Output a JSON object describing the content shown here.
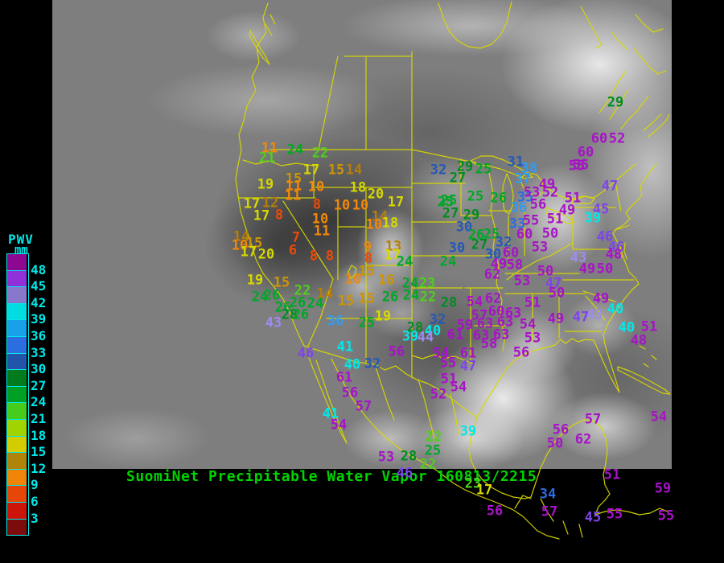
{
  "header": {
    "title": "SuomiNet Precipitable Water Vapor",
    "timestamp": "160813/2215",
    "full_title": "SuomiNet Precipitable Water Vapor 160813/2215",
    "title_color": "#00d400"
  },
  "legend": {
    "title": "PWV",
    "unit": "mm",
    "text_color": "#00e8e8",
    "labels": [
      48,
      45,
      42,
      39,
      36,
      33,
      30,
      27,
      24,
      21,
      18,
      15,
      12,
      9,
      6,
      3
    ],
    "swatch_colors": [
      "#8c0890",
      "#9030d8",
      "#8878cc",
      "#00dce0",
      "#18a0e8",
      "#2a6ee0",
      "#2254aa",
      "#007c1e",
      "#00a024",
      "#46cc1a",
      "#a0d400",
      "#d2cc00",
      "#b08408",
      "#f08408",
      "#e64608",
      "#cc1408",
      "#7c0c0c"
    ]
  },
  "palette": {
    "map_outline": "#d8d800",
    "background": "#000000",
    "satellite_base": "#7e7e7e"
  },
  "value_color_scale": [
    {
      "min": 48,
      "color": "#a812c8"
    },
    {
      "min": 45,
      "color": "#7d45e8"
    },
    {
      "min": 42,
      "color": "#9d8cf0"
    },
    {
      "min": 39,
      "color": "#00e8e8"
    },
    {
      "min": 36,
      "color": "#2e9bf5"
    },
    {
      "min": 33,
      "color": "#2f6be0"
    },
    {
      "min": 30,
      "color": "#2458b8"
    },
    {
      "min": 27,
      "color": "#008c20"
    },
    {
      "min": 24,
      "color": "#00a826"
    },
    {
      "min": 21,
      "color": "#4ed01c"
    },
    {
      "min": 18,
      "color": "#d6d800"
    },
    {
      "min": 17,
      "color": "#d6d800"
    },
    {
      "min": 15,
      "color": "#cc9408"
    },
    {
      "min": 12,
      "color": "#b87d08"
    },
    {
      "min": 9,
      "color": "#f28808"
    },
    {
      "min": 6,
      "color": "#ea4a08"
    },
    {
      "min": 3,
      "color": "#d81408"
    }
  ],
  "stations": [
    [
      11,
      335,
      185
    ],
    [
      21,
      332,
      197
    ],
    [
      24,
      367,
      187
    ],
    [
      22,
      398,
      191
    ],
    [
      17,
      387,
      212
    ],
    [
      15,
      418,
      212
    ],
    [
      14,
      440,
      212
    ],
    [
      15,
      365,
      223
    ],
    [
      19,
      330,
      230
    ],
    [
      11,
      365,
      232
    ],
    [
      10,
      393,
      233
    ],
    [
      11,
      364,
      244
    ],
    [
      18,
      445,
      234
    ],
    [
      20,
      467,
      242
    ],
    [
      17,
      492,
      252
    ],
    [
      17,
      313,
      254
    ],
    [
      12,
      336,
      253
    ],
    [
      17,
      325,
      269
    ],
    [
      8,
      347,
      268
    ],
    [
      8,
      394,
      255
    ],
    [
      10,
      425,
      256
    ],
    [
      10,
      448,
      256
    ],
    [
      10,
      398,
      273
    ],
    [
      14,
      472,
      270
    ],
    [
      10,
      465,
      280
    ],
    [
      18,
      485,
      278
    ],
    [
      11,
      400,
      288
    ],
    [
      7,
      368,
      296
    ],
    [
      6,
      364,
      312
    ],
    [
      14,
      300,
      295
    ],
    [
      10,
      298,
      306
    ],
    [
      15,
      316,
      303
    ],
    [
      17,
      309,
      314
    ],
    [
      20,
      331,
      317
    ],
    [
      8,
      390,
      319
    ],
    [
      8,
      410,
      319
    ],
    [
      9,
      457,
      308
    ],
    [
      8,
      458,
      322
    ],
    [
      13,
      489,
      307
    ],
    [
      17,
      488,
      318
    ],
    [
      15,
      456,
      338
    ],
    [
      10,
      439,
      348
    ],
    [
      16,
      480,
      349
    ],
    [
      24,
      503,
      326
    ],
    [
      30,
      568,
      309
    ],
    [
      24,
      557,
      326
    ],
    [
      25,
      591,
      245
    ],
    [
      26,
      620,
      247
    ],
    [
      25,
      554,
      252
    ],
    [
      27,
      560,
      266
    ],
    [
      29,
      586,
      268
    ],
    [
      30,
      577,
      283
    ],
    [
      26,
      592,
      293
    ],
    [
      25,
      611,
      292
    ],
    [
      27,
      596,
      305
    ],
    [
      32,
      626,
      302
    ],
    [
      30,
      613,
      317
    ],
    [
      60,
      635,
      315
    ],
    [
      49,
      620,
      329
    ],
    [
      58,
      640,
      330
    ],
    [
      62,
      612,
      342
    ],
    [
      53,
      649,
      350
    ],
    [
      36,
      645,
      259
    ],
    [
      35,
      653,
      246
    ],
    [
      33,
      643,
      279
    ],
    [
      32,
      545,
      212
    ],
    [
      29,
      578,
      208
    ],
    [
      25,
      601,
      211
    ],
    [
      27,
      569,
      222
    ],
    [
      31,
      641,
      202
    ],
    [
      38,
      658,
      210
    ],
    [
      37,
      650,
      223
    ],
    [
      25,
      558,
      250
    ],
    [
      56,
      669,
      255
    ],
    [
      53,
      661,
      240
    ],
    [
      52,
      684,
      240
    ],
    [
      49,
      680,
      230
    ],
    [
      51,
      712,
      247
    ],
    [
      55,
      717,
      207
    ],
    [
      47,
      758,
      232
    ],
    [
      49,
      705,
      262
    ],
    [
      45,
      747,
      261
    ],
    [
      39,
      737,
      272
    ],
    [
      55,
      660,
      275
    ],
    [
      51,
      690,
      273
    ],
    [
      60,
      652,
      292
    ],
    [
      50,
      684,
      291
    ],
    [
      53,
      671,
      308
    ],
    [
      46,
      752,
      295
    ],
    [
      46,
      766,
      308
    ],
    [
      48,
      763,
      317
    ],
    [
      43,
      719,
      321
    ],
    [
      49,
      730,
      335
    ],
    [
      50,
      752,
      335
    ],
    [
      50,
      678,
      338
    ],
    [
      47,
      688,
      353
    ],
    [
      50,
      692,
      365
    ],
    [
      29,
      765,
      128
    ],
    [
      60,
      745,
      173
    ],
    [
      52,
      767,
      173
    ],
    [
      60,
      728,
      190
    ],
    [
      55,
      722,
      206
    ],
    [
      51,
      662,
      377
    ],
    [
      49,
      691,
      397
    ],
    [
      47,
      722,
      395
    ],
    [
      43,
      739,
      392
    ],
    [
      49,
      747,
      372
    ],
    [
      40,
      765,
      385
    ],
    [
      40,
      779,
      408
    ],
    [
      51,
      807,
      407
    ],
    [
      48,
      794,
      424
    ],
    [
      54,
      656,
      404
    ],
    [
      53,
      662,
      421
    ],
    [
      54,
      590,
      376
    ],
    [
      57,
      596,
      393
    ],
    [
      60,
      617,
      388
    ],
    [
      63,
      638,
      390
    ],
    [
      62,
      613,
      372
    ],
    [
      59,
      578,
      405
    ],
    [
      63,
      603,
      403
    ],
    [
      63,
      628,
      401
    ],
    [
      56,
      648,
      439
    ],
    [
      54,
      819,
      519
    ],
    [
      61,
      566,
      417
    ],
    [
      63,
      598,
      418
    ],
    [
      63,
      623,
      417
    ],
    [
      58,
      608,
      428
    ],
    [
      56,
      493,
      438
    ],
    [
      54,
      548,
      440
    ],
    [
      55,
      557,
      452
    ],
    [
      61,
      582,
      440
    ],
    [
      47,
      582,
      456
    ],
    [
      51,
      558,
      472
    ],
    [
      54,
      570,
      482
    ],
    [
      52,
      545,
      491
    ],
    [
      32,
      544,
      398
    ],
    [
      28,
      516,
      408
    ],
    [
      40,
      538,
      412
    ],
    [
      39,
      510,
      419
    ],
    [
      44,
      529,
      420
    ],
    [
      56,
      435,
      489
    ],
    [
      61,
      428,
      470
    ],
    [
      41,
      429,
      432
    ],
    [
      40,
      438,
      454
    ],
    [
      32,
      463,
      453
    ],
    [
      57,
      452,
      506
    ],
    [
      24,
      510,
      353
    ],
    [
      23,
      531,
      353
    ],
    [
      24,
      511,
      368
    ],
    [
      22,
      532,
      370
    ],
    [
      26,
      485,
      370
    ],
    [
      28,
      558,
      377
    ],
    [
      15,
      430,
      375
    ],
    [
      19,
      476,
      394
    ],
    [
      25,
      456,
      402
    ],
    [
      36,
      417,
      400
    ],
    [
      43,
      340,
      402
    ],
    [
      46,
      380,
      440
    ],
    [
      14,
      404,
      366
    ],
    [
      15,
      456,
      372
    ],
    [
      19,
      317,
      349
    ],
    [
      15,
      350,
      352
    ],
    [
      24,
      323,
      370
    ],
    [
      26,
      338,
      368
    ],
    [
      22,
      376,
      362
    ],
    [
      26,
      370,
      377
    ],
    [
      24,
      392,
      378
    ],
    [
      26,
      352,
      383
    ],
    [
      28,
      360,
      392
    ],
    [
      26,
      374,
      392
    ],
    [
      41,
      411,
      515
    ],
    [
      54,
      421,
      529
    ],
    [
      53,
      480,
      569
    ],
    [
      28,
      508,
      568
    ],
    [
      22,
      539,
      544
    ],
    [
      25,
      538,
      561
    ],
    [
      22,
      532,
      578
    ],
    [
      39,
      582,
      537
    ],
    [
      46,
      503,
      589
    ],
    [
      23,
      588,
      602
    ],
    [
      17,
      602,
      610
    ],
    [
      56,
      615,
      636
    ],
    [
      57,
      737,
      522
    ],
    [
      56,
      697,
      535
    ],
    [
      50,
      690,
      552
    ],
    [
      62,
      725,
      547
    ],
    [
      51,
      761,
      591
    ],
    [
      59,
      824,
      608
    ],
    [
      34,
      681,
      615
    ],
    [
      57,
      683,
      637
    ],
    [
      45,
      737,
      644
    ],
    [
      55,
      764,
      640
    ],
    [
      55,
      828,
      642
    ]
  ]
}
